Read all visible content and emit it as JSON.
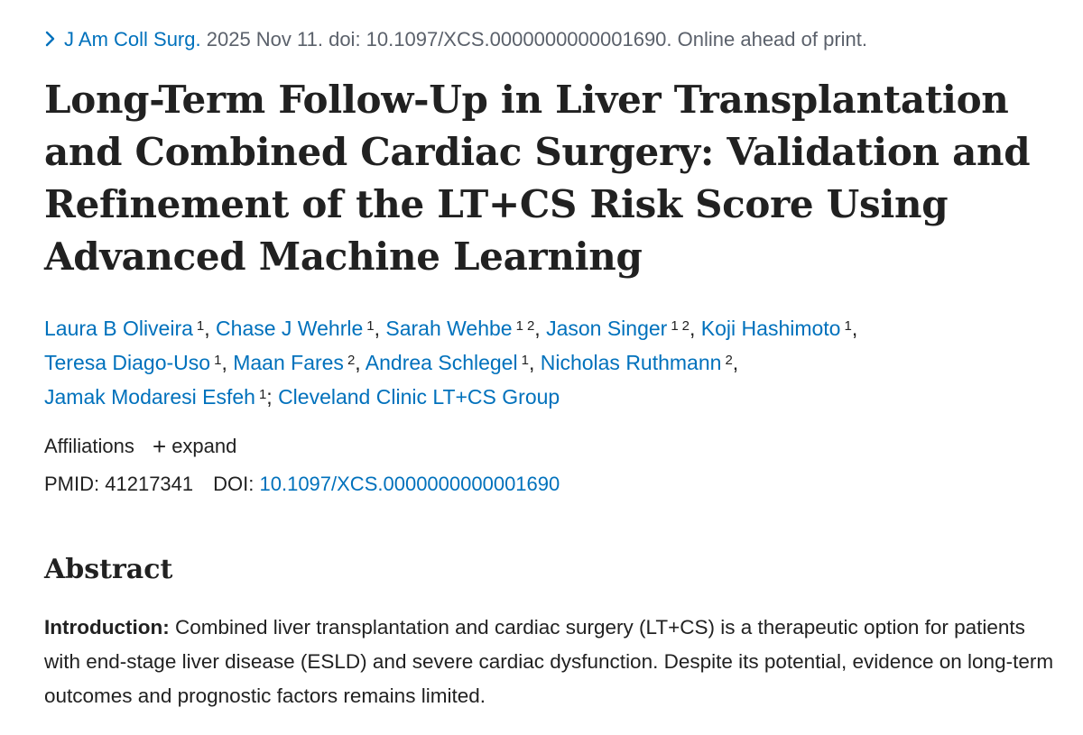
{
  "citation": {
    "journal": "J Am Coll Surg.",
    "details": "2025 Nov 11. doi: 10.1097/XCS.0000000000001690. Online ahead of print."
  },
  "title": "Long-Term Follow-Up in Liver Transplantation and Combined Cardiac Surgery: Validation and Refinement of the LT+CS Risk Score Using Advanced Machine Learning",
  "authors": [
    {
      "name": "Laura B Oliveira",
      "sups": [
        "1"
      ]
    },
    {
      "name": "Chase J Wehrle",
      "sups": [
        "1"
      ]
    },
    {
      "name": "Sarah Wehbe",
      "sups": [
        "1",
        "2"
      ]
    },
    {
      "name": "Jason Singer",
      "sups": [
        "1",
        "2"
      ]
    },
    {
      "name": "Koji Hashimoto",
      "sups": [
        "1"
      ]
    },
    {
      "name": "Teresa Diago-Uso",
      "sups": [
        "1"
      ]
    },
    {
      "name": "Maan Fares",
      "sups": [
        "2"
      ]
    },
    {
      "name": "Andrea Schlegel",
      "sups": [
        "1"
      ]
    },
    {
      "name": "Nicholas Ruthmann",
      "sups": [
        "2"
      ]
    },
    {
      "name": "Jamak Modaresi Esfeh",
      "sups": [
        "1"
      ]
    }
  ],
  "group": "Cleveland Clinic LT+CS Group",
  "affiliations": {
    "label": "Affiliations",
    "expand_label": "expand"
  },
  "ids": {
    "pmid_label": "PMID:",
    "pmid": "41217341",
    "doi_label": "DOI:",
    "doi": "10.1097/XCS.0000000000001690"
  },
  "abstract": {
    "heading": "Abstract",
    "intro_label": "Introduction:",
    "intro_text": "Combined liver transplantation and cardiac surgery (LT+CS) is a therapeutic option for patients with end-stage liver disease (ESLD) and severe cardiac dysfunction. Despite its potential, evidence on long-term outcomes and prognostic factors remains limited."
  },
  "colors": {
    "link": "#0071bc",
    "text": "#212121",
    "muted": "#5b616b"
  }
}
